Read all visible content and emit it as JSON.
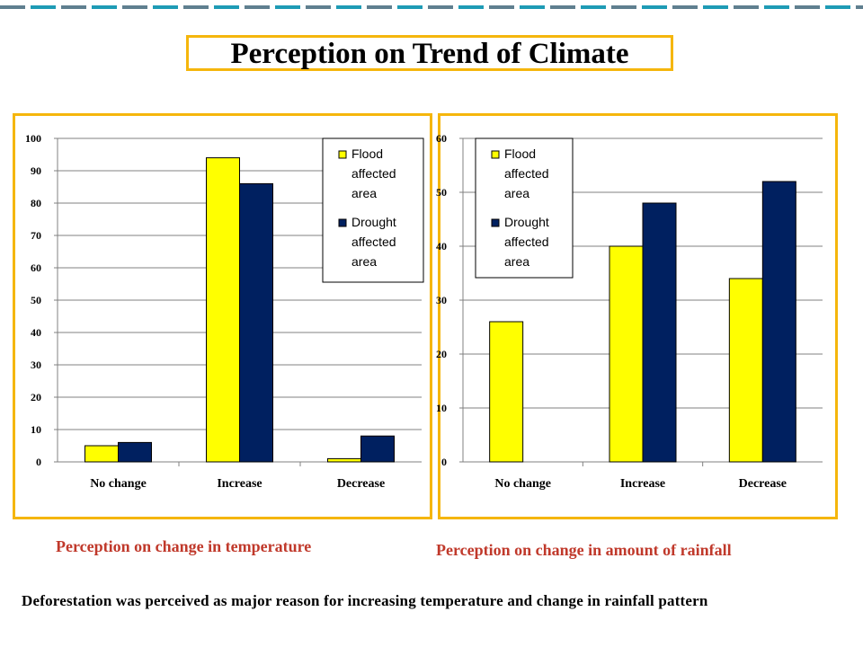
{
  "slide": {
    "title": "Perception on Trend of Climate",
    "caption_left": "Perception on change in temperature",
    "caption_right": "Perception on change in amount of rainfall",
    "footnote": "Deforestation was perceived as major reason for increasing temperature and change in rainfall pattern"
  },
  "colors": {
    "flood": "#ffff00",
    "drought": "#002060",
    "frame_border": "#f5b60c",
    "caption": "#c0392b"
  },
  "chart_data": [
    {
      "type": "bar",
      "title": "",
      "categories": [
        "No change",
        "Increase",
        "Decrease"
      ],
      "series": [
        {
          "name": "Flood affected area",
          "values": [
            5,
            94,
            1
          ]
        },
        {
          "name": "Drought affected area",
          "values": [
            6,
            86,
            8
          ]
        }
      ],
      "ylim": [
        0,
        100
      ],
      "yticks": [
        0,
        10,
        20,
        30,
        40,
        50,
        60,
        70,
        80,
        90,
        100
      ],
      "xlabel": "",
      "ylabel": "",
      "grid": true,
      "legend_position": "top-right",
      "legend_lines": [
        [
          "Flood",
          "affected",
          "area"
        ],
        [
          "Drought",
          "affected",
          "area"
        ]
      ]
    },
    {
      "type": "bar",
      "title": "",
      "categories": [
        "No change",
        "Increase",
        "Decrease"
      ],
      "series": [
        {
          "name": "Flood affected area",
          "values": [
            26,
            40,
            34
          ]
        },
        {
          "name": "Drought affected area",
          "values": [
            0,
            48,
            52
          ]
        }
      ],
      "ylim": [
        0,
        60
      ],
      "yticks": [
        0,
        10,
        20,
        30,
        40,
        50,
        60
      ],
      "xlabel": "",
      "ylabel": "",
      "grid": true,
      "legend_position": "top-left",
      "legend_lines": [
        [
          "Flood",
          "affected",
          "area"
        ],
        [
          "Drought",
          "affected",
          "area"
        ]
      ]
    }
  ]
}
